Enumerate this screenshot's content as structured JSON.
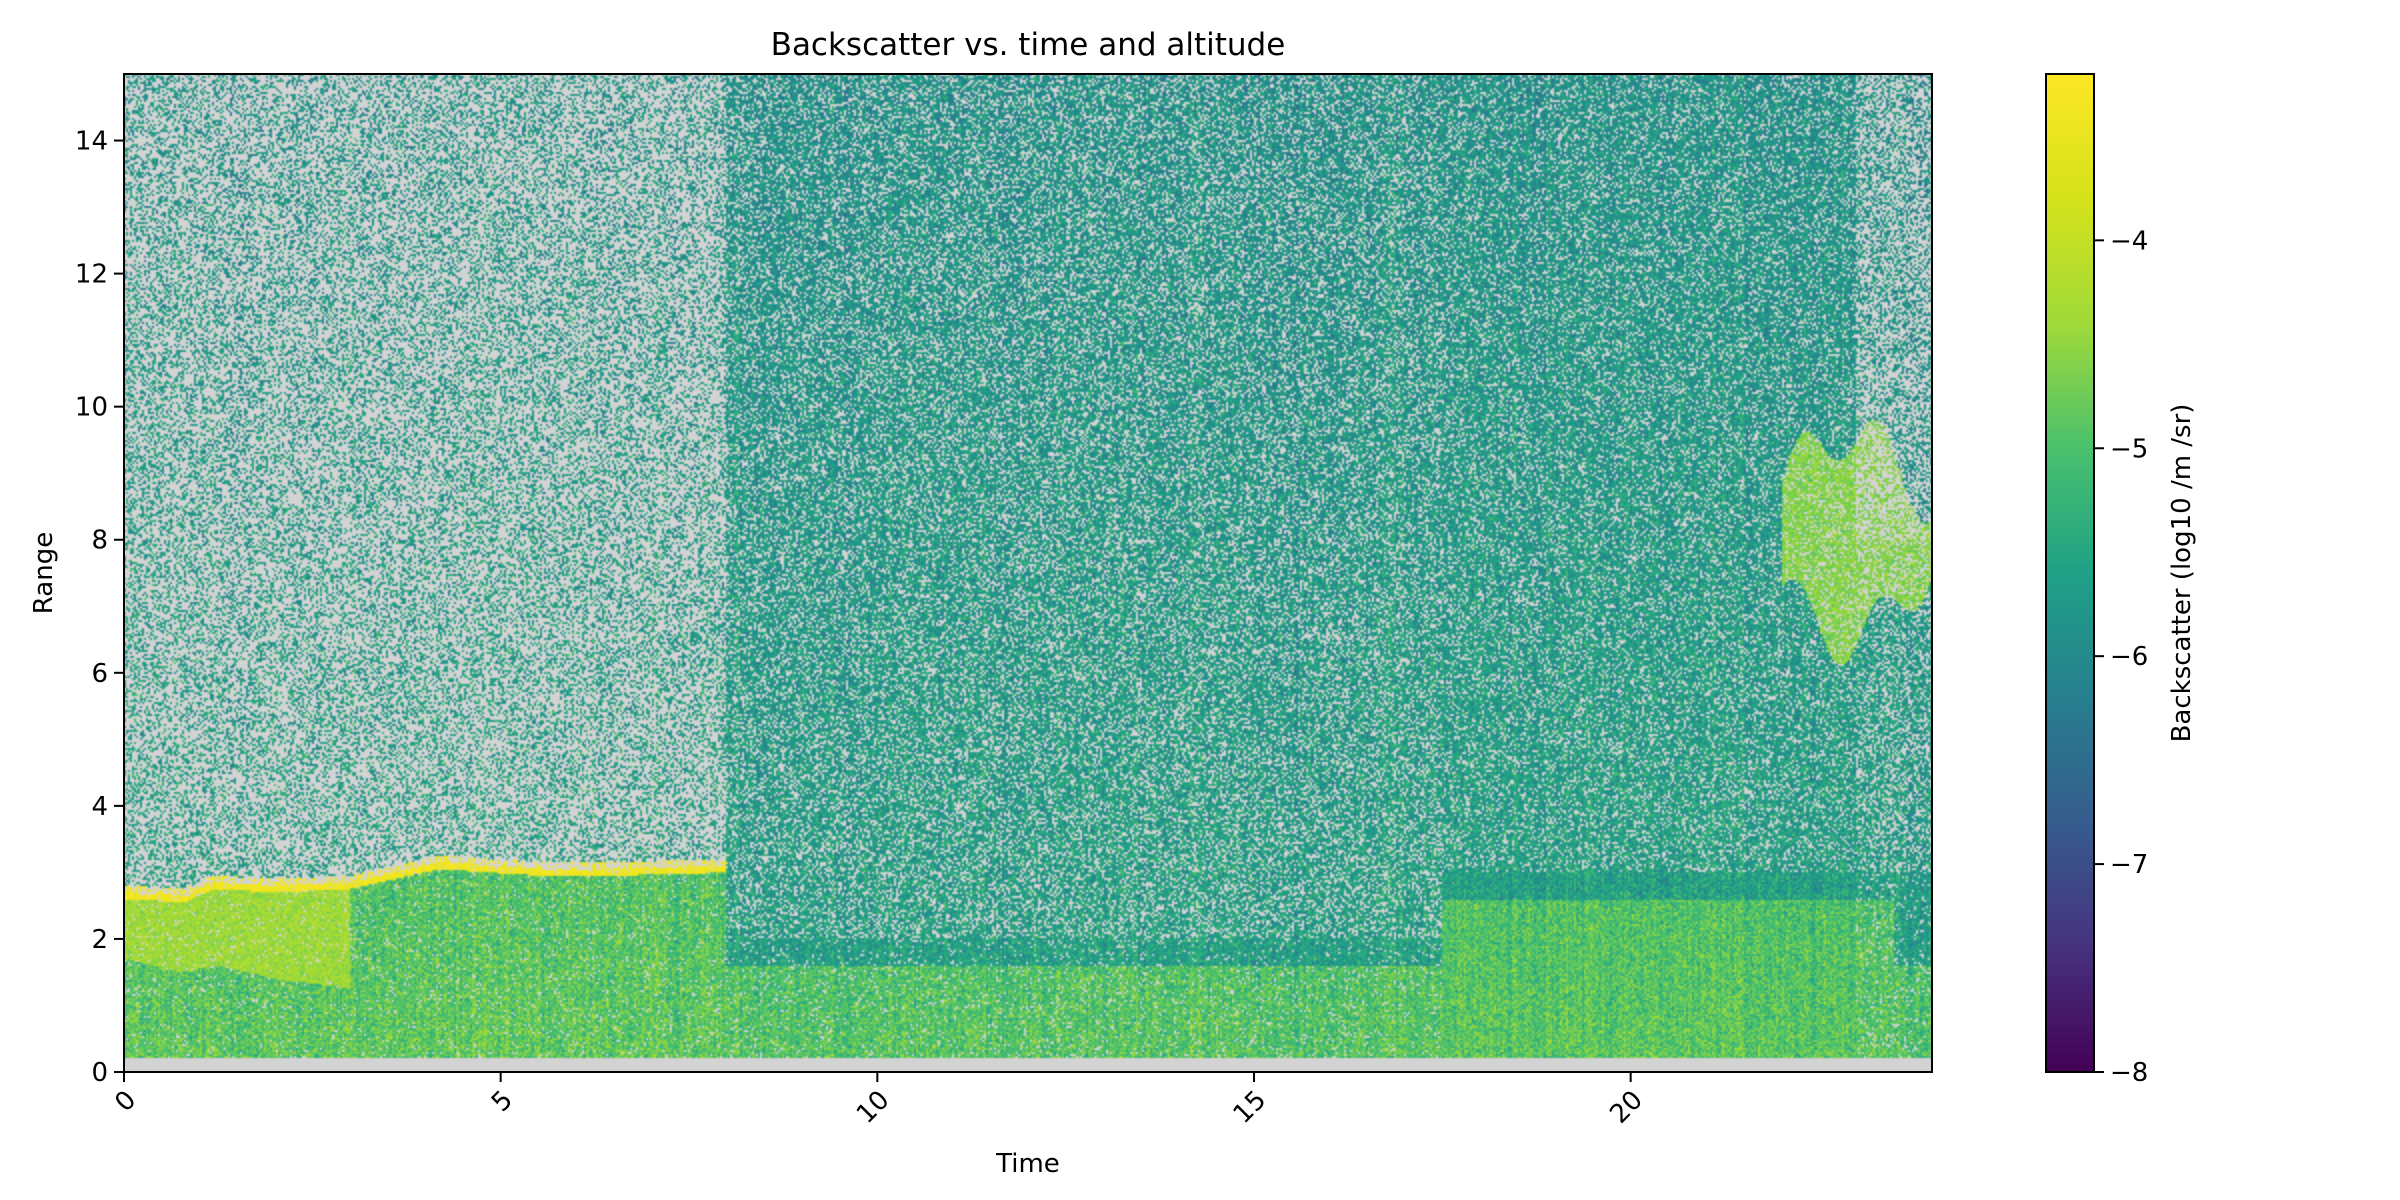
{
  "chart_data": {
    "type": "heatmap",
    "title": "Backscatter vs. time and altitude",
    "xlabel": "Time",
    "ylabel": "Range",
    "colorbar_label": "Backscatter (log10 /m /sr)",
    "xlim": [
      0,
      24
    ],
    "ylim": [
      0,
      15
    ],
    "clim": [
      -8,
      -3.2
    ],
    "colormap": "viridis",
    "missing_color": "#d3d3d3",
    "x_ticks": [
      0,
      5,
      10,
      15,
      20
    ],
    "x_tick_labels": [
      "0",
      "5",
      "10",
      "15",
      "20"
    ],
    "y_ticks": [
      0,
      2,
      4,
      6,
      8,
      10,
      12,
      14
    ],
    "y_tick_labels": [
      "0",
      "2",
      "4",
      "6",
      "8",
      "10",
      "12",
      "14"
    ],
    "colorbar_ticks": [
      -8,
      -7,
      -6,
      -5,
      -4
    ],
    "colorbar_tick_labels": [
      "−8",
      "−7",
      "−6",
      "−5",
      "−4"
    ],
    "grid": false,
    "features": {
      "surface_gap_range": [
        0,
        0.2
      ],
      "low_cloud_layer": [
        [
          0,
          2.7
        ],
        [
          0.8,
          2.65
        ],
        [
          1.2,
          2.85
        ],
        [
          2,
          2.8
        ],
        [
          3,
          2.85
        ],
        [
          4.2,
          3.15
        ],
        [
          5.5,
          3.05
        ],
        [
          6.5,
          3.05
        ],
        [
          8,
          3.1
        ]
      ],
      "high_cloud": {
        "time": [
          22,
          24
        ],
        "range": [
          6.5,
          9.6
        ]
      },
      "clear_sky_noisy_period": [
        0,
        8
      ],
      "boundary_layer_top": 3.0
    }
  }
}
